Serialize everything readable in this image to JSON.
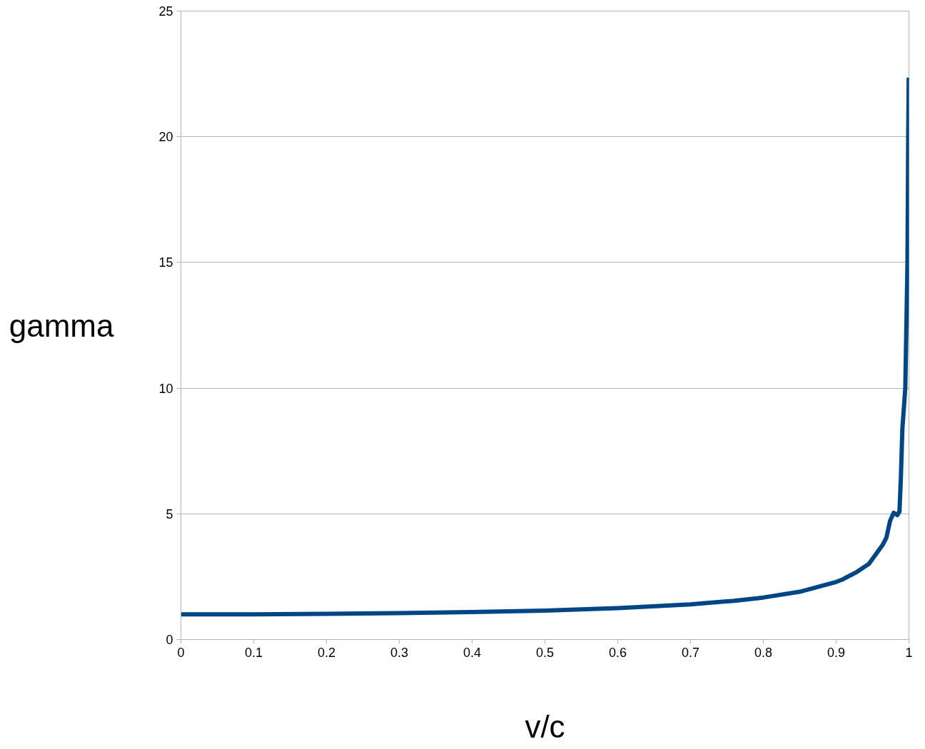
{
  "chart_data": {
    "type": "line",
    "xlabel": "v/c",
    "ylabel": "gamma",
    "series": [
      {
        "color": "#004586",
        "x": [
          0,
          0.1,
          0.2,
          0.3,
          0.4,
          0.5,
          0.6,
          0.7,
          0.76,
          0.8,
          0.85,
          0.9,
          0.909,
          0.912,
          0.928,
          0.945,
          0.964,
          0.969,
          0.974,
          0.979,
          0.984,
          0.987,
          0.989,
          0.991,
          0.995,
          0.998,
          0.999,
          0.9997
        ],
        "values": [
          1.0,
          1.0,
          1.02,
          1.05,
          1.09,
          1.15,
          1.25,
          1.4,
          1.54,
          1.67,
          1.9,
          2.29,
          2.39,
          2.44,
          2.68,
          3.01,
          3.77,
          4.05,
          4.71,
          5.04,
          4.95,
          5.09,
          6.5,
          8.4,
          10.0,
          15.0,
          20.0,
          22.35
        ]
      }
    ],
    "xlim": [
      0,
      1
    ],
    "ylim": [
      0,
      25
    ],
    "xticks": [
      0,
      0.1,
      0.2,
      0.3,
      0.4,
      0.5,
      0.6,
      0.7,
      0.8,
      0.9,
      1
    ],
    "yticks": [
      0,
      5,
      10,
      15,
      20,
      25
    ],
    "grid": "y",
    "marker": "none",
    "line_style": "solid"
  }
}
